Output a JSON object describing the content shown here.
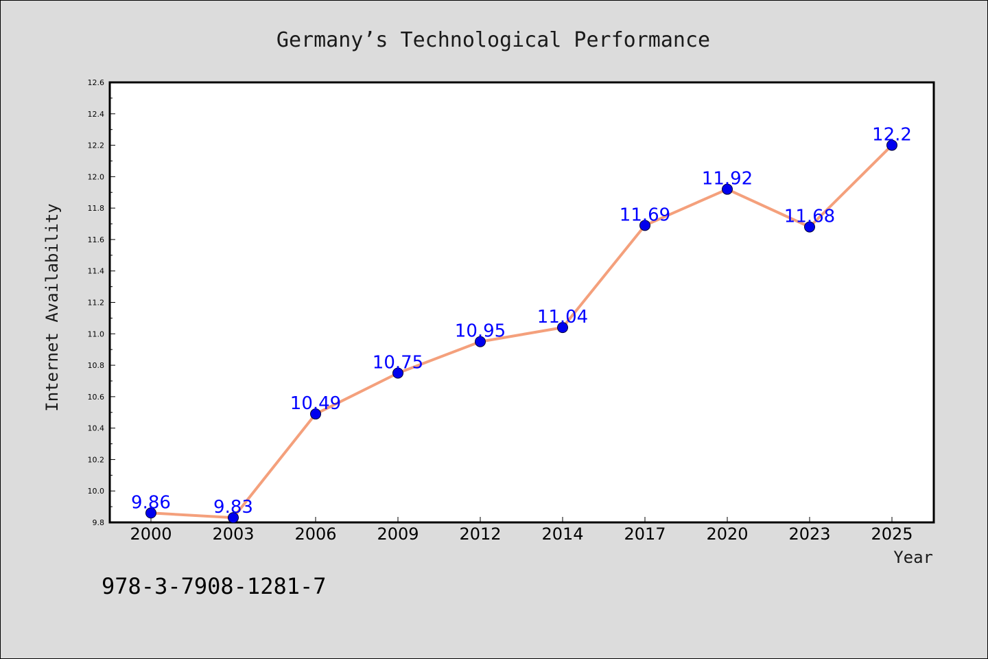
{
  "chart_data": {
    "type": "line",
    "title": "Germany’s Technological Performance",
    "xlabel": "Year",
    "ylabel": "Internet Availability",
    "categories": [
      "2000",
      "2003",
      "2006",
      "2009",
      "2012",
      "2014",
      "2017",
      "2020",
      "2023",
      "2025"
    ],
    "values": [
      9.86,
      9.83,
      10.49,
      10.75,
      10.95,
      11.04,
      11.69,
      11.92,
      11.68,
      12.2
    ],
    "data_labels": [
      "9.86",
      "9.83",
      "10.49",
      "10.75",
      "10.95",
      "11.04",
      "11.69",
      "11.92",
      "11.68",
      "12.2"
    ],
    "ylim": [
      9.8,
      12.6
    ],
    "yticks": [
      "9.8",
      "10.0",
      "10.2",
      "10.4",
      "10.6",
      "10.8",
      "11.0",
      "11.2",
      "11.4",
      "11.6",
      "11.8",
      "12.0",
      "12.2",
      "12.4",
      "12.6"
    ],
    "grid": false,
    "colors": {
      "line": "#f4a07c",
      "marker": "#0000ee",
      "label": "#0000ff",
      "plot_bg": "#ffffff",
      "figure_bg": "#dcdcdc"
    }
  },
  "footer": {
    "isbn": "978-3-7908-1281-7"
  }
}
